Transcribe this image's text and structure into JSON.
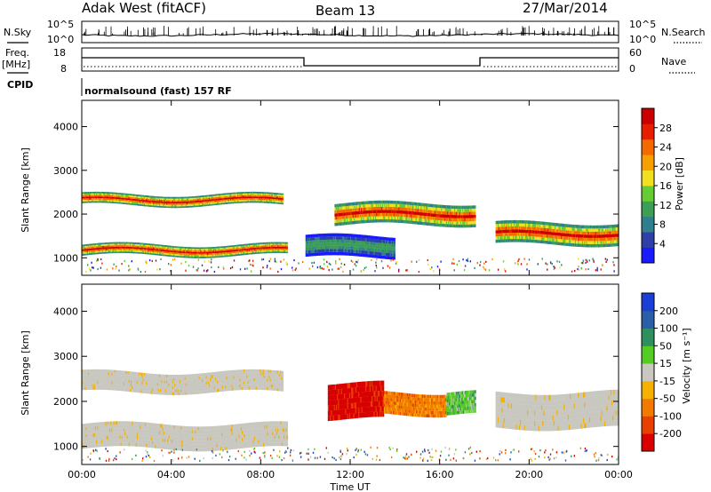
{
  "header": {
    "station": "Adak West (fitACF)",
    "beam": "Beam 13",
    "date": "27/Mar/2014"
  },
  "noise_panel": {
    "left_label": "N.Sky",
    "right_label": "N.Search",
    "left_ticks": [
      "10^5",
      "10^0"
    ],
    "right_ticks": [
      "10^5",
      "10^0"
    ]
  },
  "freq_panel": {
    "left_label": "Freq.",
    "left_unit": "[MHz]",
    "right_label": "Nave",
    "left_ticks": [
      "18",
      "8"
    ],
    "right_ticks": [
      "60",
      "0"
    ],
    "cpid_label": "CPID",
    "cpid_value": "normalsound (fast) 157 RF"
  },
  "colors": {
    "power_scale": [
      "#1a1aff",
      "#2e3fa8",
      "#2f7f8f",
      "#3d9e57",
      "#66cc33",
      "#f0e020",
      "#f5a000",
      "#f26a00",
      "#e81e00",
      "#cc0000"
    ],
    "velocity_scale": [
      "#1a3fd6",
      "#2a5fa8",
      "#2f8f5f",
      "#55cc22",
      "#c8c8c0",
      "#f5b000",
      "#f27a00",
      "#e84000",
      "#d80000"
    ],
    "bg": "#ffffff"
  },
  "chart_data": [
    {
      "type": "heatmap",
      "name": "power",
      "ylabel": "Slant Range [km]",
      "yticks": [
        "1000",
        "2000",
        "3000",
        "4000"
      ],
      "ylim": [
        600,
        4600
      ],
      "colorbar_label": "Power [dB]",
      "colorbar_ticks": [
        "4",
        "8",
        "12",
        "16",
        "20",
        "24",
        "28"
      ],
      "bands": [
        {
          "t0": 0.0,
          "t1": 9.2,
          "r0": 1050,
          "r1": 1300,
          "level": "high"
        },
        {
          "t0": 0.0,
          "t1": 9.0,
          "r0": 2200,
          "r1": 2450,
          "level": "high"
        },
        {
          "t0": 11.3,
          "t1": 17.6,
          "r0": 1750,
          "r1": 2250,
          "level": "high"
        },
        {
          "t0": 18.5,
          "t1": 24.0,
          "r0": 1300,
          "r1": 1800,
          "level": "high"
        },
        {
          "t0": 10.0,
          "t1": 14.0,
          "r0": 1000,
          "r1": 1500,
          "level": "low"
        }
      ]
    },
    {
      "type": "heatmap",
      "name": "velocity",
      "xlabel": "Time UT",
      "xticks": [
        "00:00",
        "04:00",
        "08:00",
        "12:00",
        "16:00",
        "20:00",
        "00:00"
      ],
      "xlim": [
        0,
        24
      ],
      "ylabel": "Slant Range [km]",
      "yticks": [
        "1000",
        "2000",
        "3000",
        "4000"
      ],
      "ylim": [
        600,
        4600
      ],
      "colorbar_label": "Velocity [m s⁻¹]",
      "colorbar_ticks": [
        "200",
        "100",
        "50",
        "15",
        "-15",
        "-50",
        "-100",
        "-200"
      ],
      "bands": [
        {
          "t0": 0.0,
          "t1": 9.2,
          "r0": 950,
          "r1": 1500,
          "level": "near-zero"
        },
        {
          "t0": 0.0,
          "t1": 9.0,
          "r0": 2200,
          "r1": 2650,
          "level": "near-zero"
        },
        {
          "t0": 11.0,
          "t1": 13.5,
          "r0": 1600,
          "r1": 2400,
          "level": "-200"
        },
        {
          "t0": 13.5,
          "t1": 16.3,
          "r0": 1700,
          "r1": 2200,
          "level": "-100"
        },
        {
          "t0": 16.3,
          "t1": 17.6,
          "r0": 1700,
          "r1": 2200,
          "level": "50"
        },
        {
          "t0": 18.5,
          "t1": 24.0,
          "r0": 1400,
          "r1": 2200,
          "level": "near-zero"
        }
      ]
    }
  ]
}
